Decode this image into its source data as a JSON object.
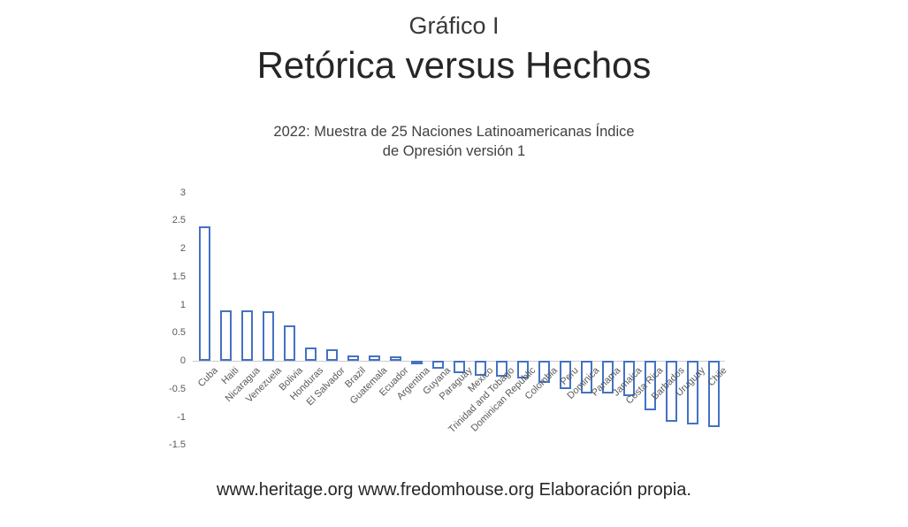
{
  "header": {
    "kicker": "Gráfico I",
    "title": "Retórica versus Hechos",
    "subtitle_line1": "2022: Muestra de 25 Naciones Latinoamericanas Índice",
    "subtitle_line2": "de Opresión versión 1"
  },
  "footer": {
    "caption": "www.heritage.org www.fredomhouse.org Elaboración propia."
  },
  "colors": {
    "bar_border": "#4472C4",
    "bar_fill": "#ffffff",
    "axis_text": "#595959",
    "title_text": "#262626"
  },
  "chart_data": {
    "type": "bar",
    "title": "2022: Muestra de 25 Naciones Latinoamericanas Índice de Opresión versión 1",
    "xlabel": "",
    "ylabel": "",
    "ylim": [
      -1.5,
      3
    ],
    "yticks": [
      3,
      2.5,
      2,
      1.5,
      1,
      0.5,
      0,
      -0.5,
      -1,
      -1.5
    ],
    "grid": false,
    "legend": false,
    "bar_style": "hollow-outline",
    "categories": [
      "Cuba",
      "Haiti",
      "Nicaragua",
      "Venezuela",
      "Bolivia",
      "Honduras",
      "El Salvador",
      "Brazil",
      "Guatemala",
      "Ecuador",
      "Argentina",
      "Guyana",
      "Paraguay",
      "Mexico",
      "Trinidad and Tobago",
      "Dominican Republic",
      "Colombia",
      "Peru",
      "Dominica",
      "Panama",
      "Jamaica",
      "Costa Rica",
      "Barbados",
      "Uruguay",
      "Chile"
    ],
    "values": [
      2.4,
      0.9,
      0.9,
      0.88,
      0.63,
      0.24,
      0.2,
      0.1,
      0.1,
      0.08,
      -0.05,
      -0.14,
      -0.22,
      -0.27,
      -0.29,
      -0.32,
      -0.4,
      -0.5,
      -0.58,
      -0.58,
      -0.63,
      -0.88,
      -1.09,
      -1.13,
      -1.18
    ]
  }
}
